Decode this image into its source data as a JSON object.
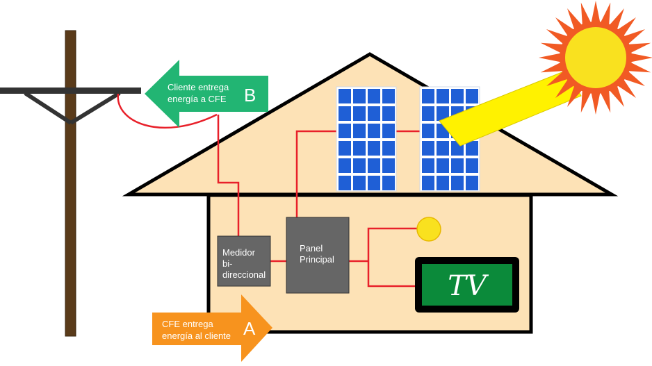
{
  "arrow_b": {
    "line1": "Cliente entrega",
    "line2": "energía a CFE",
    "letter": "B",
    "color": "#22b573"
  },
  "arrow_a": {
    "line1": "CFE entrega",
    "line2": "energía al cliente",
    "letter": "A",
    "color": "#f7931e"
  },
  "meter": {
    "line1": "Medidor",
    "line2": "bi-",
    "line3": "direccional"
  },
  "panel": {
    "line1": "Panel",
    "line2": "Principal"
  },
  "tv": {
    "label": "TV"
  },
  "colors": {
    "wire": "#e8202a",
    "house_fill": "#fde2b6",
    "pole": "#5a3b1a",
    "crossarm": "#333333",
    "box": "#666666",
    "solar_panel": "#1f5fd6",
    "sun_core": "#f9e11f",
    "sun_rays": "#f15a24",
    "sunbeam": "#fff200",
    "tv_screen": "#0b8a3a",
    "bulb": "#f9e11f"
  }
}
